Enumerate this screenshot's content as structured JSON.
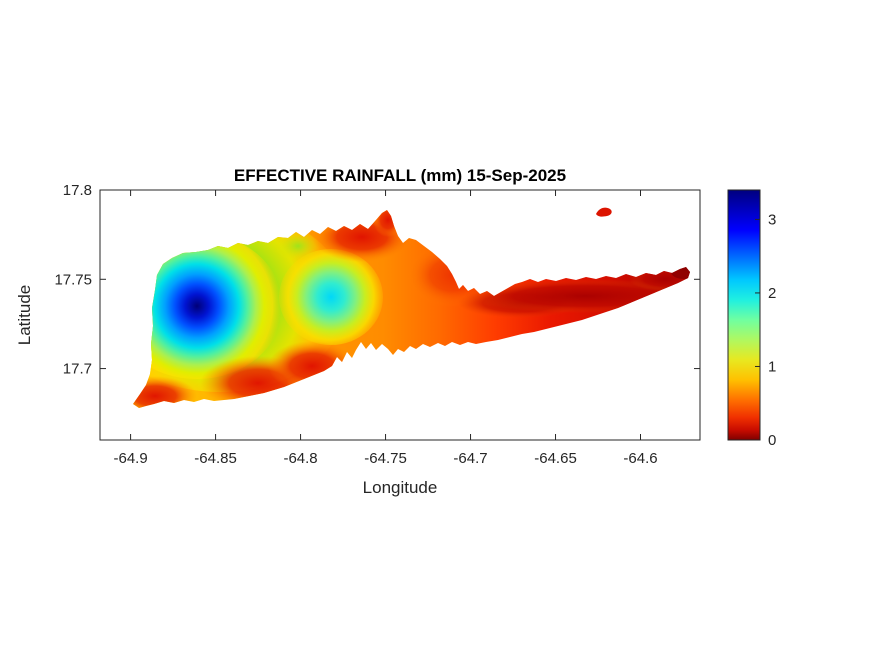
{
  "figure": {
    "background_color": "#ffffff",
    "description": "MATLAB-style filled contour heatmap of effective rainfall over an island (St. Croix-like outline) with jet colorbar"
  },
  "chart_data": {
    "type": "heatmap",
    "title": "EFFECTIVE RAINFALL (mm) 15-Sep-2025",
    "xlabel": "Longitude",
    "ylabel": "Latitude",
    "x_ticks": {
      "labels": [
        "-64.9",
        "-64.85",
        "-64.8",
        "-64.75",
        "-64.7",
        "-64.65",
        "-64.6"
      ],
      "values": [
        -64.9,
        -64.85,
        -64.8,
        -64.75,
        -64.7,
        -64.65,
        -64.6
      ]
    },
    "y_ticks": {
      "labels": [
        "17.8",
        "17.75",
        "17.7"
      ],
      "values": [
        17.8,
        17.75,
        17.7
      ]
    },
    "x_range": [
      -64.918,
      -64.565
    ],
    "y_range": [
      17.66,
      17.8
    ],
    "grid": false,
    "legend": "colorbar on right",
    "colorbar": {
      "ticks": [
        "0",
        "1",
        "2",
        "3"
      ],
      "values": [
        0,
        1,
        2,
        3
      ],
      "range": [
        0,
        3.4
      ],
      "colormap": "jet reversed (dark blue = high rainfall, dark red = low rainfall)",
      "colors_top_to_bottom": [
        "#00007f",
        "#0000ff",
        "#0064ff",
        "#00c8ff",
        "#20f0e0",
        "#70ffa0",
        "#b0f860",
        "#e8e820",
        "#ffc000",
        "#ff7000",
        "#f03000",
        "#7f0000"
      ]
    },
    "region_shape": "irregular island silhouette spanning lon -64.90 to -64.57, lat 17.68 to 17.79, plus tiny offshore islet near lon -64.62, lat 17.787",
    "features": [
      {
        "lon": -64.874,
        "lat": 17.736,
        "value": 3.3,
        "desc": "dark-blue rainfall maximum core in west"
      },
      {
        "lon": -64.782,
        "lat": 17.742,
        "value": 2.1,
        "desc": "secondary cyan maximum near center"
      },
      {
        "lon": -64.85,
        "lat": 17.7,
        "value": 0.2,
        "desc": "dry red zone along south-central coast"
      },
      {
        "lon": -64.765,
        "lat": 17.775,
        "value": 0.3,
        "desc": "red/orange patch at north-central bump"
      },
      {
        "lon": -64.65,
        "lat": 17.74,
        "value": 0.1,
        "desc": "dry dark-red eastern tail"
      },
      {
        "lon": -64.62,
        "lat": 17.787,
        "value": 0.2,
        "desc": "small red offshore islet (north-east)"
      }
    ],
    "sample_points": [
      {
        "lon": -64.874,
        "lat": 17.736,
        "value": 3.3
      },
      {
        "lon": -64.885,
        "lat": 17.745,
        "value": 2.6
      },
      {
        "lon": -64.862,
        "lat": 17.725,
        "value": 2.2
      },
      {
        "lon": -64.845,
        "lat": 17.75,
        "value": 1.5
      },
      {
        "lon": -64.82,
        "lat": 17.74,
        "value": 1.2
      },
      {
        "lon": -64.782,
        "lat": 17.742,
        "value": 2.1
      },
      {
        "lon": -64.8,
        "lat": 17.76,
        "value": 1.0
      },
      {
        "lon": -64.765,
        "lat": 17.775,
        "value": 0.3
      },
      {
        "lon": -64.9,
        "lat": 17.685,
        "value": 0.4
      },
      {
        "lon": -64.87,
        "lat": 17.695,
        "value": 0.3
      },
      {
        "lon": -64.845,
        "lat": 17.7,
        "value": 0.2
      },
      {
        "lon": -64.76,
        "lat": 17.72,
        "value": 0.8
      },
      {
        "lon": -64.73,
        "lat": 17.73,
        "value": 0.7
      },
      {
        "lon": -64.7,
        "lat": 17.745,
        "value": 0.5
      },
      {
        "lon": -64.68,
        "lat": 17.745,
        "value": 0.3
      },
      {
        "lon": -64.65,
        "lat": 17.74,
        "value": 0.15
      },
      {
        "lon": -64.62,
        "lat": 17.75,
        "value": 0.1
      },
      {
        "lon": -64.59,
        "lat": 17.755,
        "value": 0.08
      },
      {
        "lon": -64.572,
        "lat": 17.756,
        "value": 0.05
      },
      {
        "lon": -64.62,
        "lat": 17.787,
        "value": 0.2
      }
    ]
  }
}
